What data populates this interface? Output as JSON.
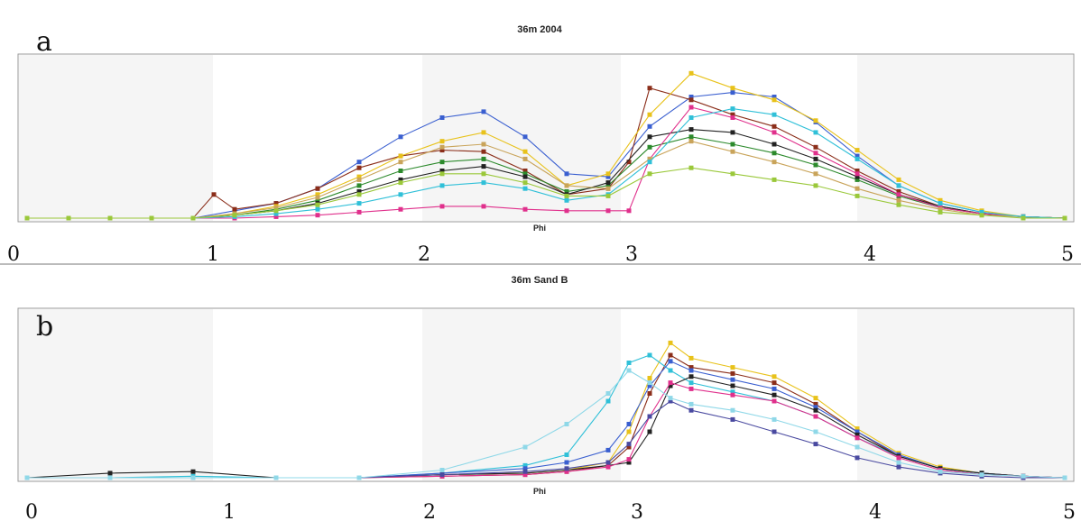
{
  "chart_data": [
    {
      "type": "line",
      "panel_label": "a",
      "title": "36m 2004",
      "xlabel": "Phi",
      "xlim": [
        0,
        5
      ],
      "xticks": [
        "0",
        "1",
        "2",
        "3",
        "4",
        "5"
      ],
      "grid": false,
      "series": [
        {
          "color": "#3a5fd0",
          "x": [
            0.0,
            0.2,
            0.4,
            0.6,
            0.8,
            1.0,
            1.2,
            1.4,
            1.6,
            1.8,
            2.0,
            2.2,
            2.4,
            2.6,
            2.8,
            3.0,
            3.2,
            3.4,
            3.6,
            3.8,
            4.0,
            4.2,
            4.4,
            4.6,
            4.8,
            5.0
          ],
          "y": [
            0,
            0,
            0,
            0,
            0,
            0.05,
            0.1,
            0.2,
            0.38,
            0.55,
            0.68,
            0.72,
            0.55,
            0.3,
            0.28,
            0.62,
            0.82,
            0.85,
            0.82,
            0.65,
            0.42,
            0.22,
            0.1,
            0.04,
            0.01,
            0
          ]
        },
        {
          "color": "#8b2e1a",
          "x": [
            0.0,
            0.2,
            0.4,
            0.6,
            0.8,
            0.9,
            1.0,
            1.2,
            1.4,
            1.6,
            1.8,
            2.0,
            2.2,
            2.4,
            2.6,
            2.8,
            2.9,
            3.0,
            3.2,
            3.4,
            3.6,
            3.8,
            4.0,
            4.2,
            4.4,
            4.6,
            4.8,
            5.0
          ],
          "y": [
            0,
            0,
            0,
            0,
            0,
            0.16,
            0.06,
            0.1,
            0.2,
            0.34,
            0.42,
            0.46,
            0.45,
            0.32,
            0.16,
            0.2,
            0.38,
            0.88,
            0.8,
            0.7,
            0.62,
            0.48,
            0.32,
            0.18,
            0.08,
            0.03,
            0.01,
            0
          ]
        },
        {
          "color": "#e8c21a",
          "x": [
            0.0,
            0.2,
            0.4,
            0.6,
            0.8,
            1.0,
            1.2,
            1.4,
            1.6,
            1.8,
            2.0,
            2.2,
            2.4,
            2.6,
            2.8,
            3.0,
            3.2,
            3.4,
            3.6,
            3.8,
            4.0,
            4.2,
            4.4,
            4.6,
            4.8,
            5.0
          ],
          "y": [
            0,
            0,
            0,
            0,
            0,
            0.03,
            0.08,
            0.16,
            0.28,
            0.42,
            0.52,
            0.58,
            0.45,
            0.22,
            0.3,
            0.7,
            0.98,
            0.88,
            0.8,
            0.66,
            0.46,
            0.26,
            0.12,
            0.05,
            0.01,
            0
          ]
        },
        {
          "color": "#2c8a2c",
          "x": [
            0.0,
            0.2,
            0.4,
            0.6,
            0.8,
            1.0,
            1.2,
            1.4,
            1.6,
            1.8,
            2.0,
            2.2,
            2.4,
            2.6,
            2.8,
            3.0,
            3.2,
            3.4,
            3.6,
            3.8,
            4.0,
            4.2,
            4.4,
            4.6,
            4.8,
            5.0
          ],
          "y": [
            0,
            0,
            0,
            0,
            0,
            0.02,
            0.06,
            0.12,
            0.22,
            0.32,
            0.38,
            0.4,
            0.3,
            0.18,
            0.22,
            0.48,
            0.55,
            0.5,
            0.44,
            0.36,
            0.26,
            0.15,
            0.07,
            0.03,
            0.01,
            0
          ]
        },
        {
          "color": "#222222",
          "x": [
            0.0,
            0.2,
            0.4,
            0.6,
            0.8,
            1.0,
            1.2,
            1.4,
            1.6,
            1.8,
            2.0,
            2.2,
            2.4,
            2.6,
            2.8,
            3.0,
            3.2,
            3.4,
            3.6,
            3.8,
            4.0,
            4.2,
            4.4,
            4.6,
            4.8,
            5.0
          ],
          "y": [
            0,
            0,
            0,
            0,
            0,
            0.02,
            0.05,
            0.1,
            0.18,
            0.26,
            0.32,
            0.35,
            0.28,
            0.16,
            0.24,
            0.55,
            0.6,
            0.58,
            0.5,
            0.4,
            0.28,
            0.16,
            0.08,
            0.03,
            0.01,
            0
          ]
        },
        {
          "color": "#e0308c",
          "x": [
            0.0,
            0.2,
            0.4,
            0.6,
            0.8,
            1.0,
            1.2,
            1.4,
            1.6,
            1.8,
            2.0,
            2.2,
            2.4,
            2.6,
            2.8,
            2.9,
            3.0,
            3.2,
            3.4,
            3.6,
            3.8,
            4.0,
            4.2,
            4.4,
            4.6,
            4.8,
            5.0
          ],
          "y": [
            0,
            0,
            0,
            0,
            0,
            0,
            0.01,
            0.02,
            0.04,
            0.06,
            0.08,
            0.08,
            0.06,
            0.05,
            0.05,
            0.05,
            0.4,
            0.75,
            0.68,
            0.58,
            0.44,
            0.3,
            0.16,
            0.07,
            0.03,
            0.01,
            0
          ]
        },
        {
          "color": "#c9a45a",
          "x": [
            0.0,
            0.2,
            0.4,
            0.6,
            0.8,
            1.0,
            1.2,
            1.4,
            1.6,
            1.8,
            2.0,
            2.2,
            2.4,
            2.6,
            2.8,
            3.0,
            3.2,
            3.4,
            3.6,
            3.8,
            4.0,
            4.2,
            4.4,
            4.6,
            4.8,
            5.0
          ],
          "y": [
            0,
            0,
            0,
            0,
            0,
            0.03,
            0.07,
            0.14,
            0.26,
            0.38,
            0.48,
            0.5,
            0.4,
            0.22,
            0.2,
            0.4,
            0.52,
            0.45,
            0.38,
            0.3,
            0.2,
            0.12,
            0.06,
            0.02,
            0.01,
            0
          ]
        },
        {
          "color": "#30c0d8",
          "x": [
            0.0,
            0.2,
            0.4,
            0.6,
            0.8,
            1.0,
            1.2,
            1.4,
            1.6,
            1.8,
            2.0,
            2.2,
            2.4,
            2.6,
            2.8,
            3.0,
            3.2,
            3.4,
            3.6,
            3.8,
            4.0,
            4.2,
            4.4,
            4.6,
            4.8,
            5.0
          ],
          "y": [
            0,
            0,
            0,
            0,
            0,
            0.01,
            0.03,
            0.06,
            0.1,
            0.16,
            0.22,
            0.24,
            0.2,
            0.12,
            0.16,
            0.38,
            0.68,
            0.74,
            0.7,
            0.58,
            0.4,
            0.22,
            0.1,
            0.04,
            0.01,
            0
          ]
        },
        {
          "color": "#9ac83a",
          "x": [
            0.0,
            0.2,
            0.4,
            0.6,
            0.8,
            1.0,
            1.2,
            1.4,
            1.6,
            1.8,
            2.0,
            2.2,
            2.4,
            2.6,
            2.8,
            3.0,
            3.2,
            3.4,
            3.6,
            3.8,
            4.0,
            4.2,
            4.4,
            4.6,
            4.8,
            5.0
          ],
          "y": [
            0,
            0,
            0,
            0,
            0,
            0.02,
            0.05,
            0.09,
            0.16,
            0.24,
            0.3,
            0.3,
            0.24,
            0.15,
            0.15,
            0.3,
            0.34,
            0.3,
            0.26,
            0.22,
            0.15,
            0.09,
            0.04,
            0.02,
            0,
            0
          ]
        }
      ]
    },
    {
      "type": "line",
      "panel_label": "b",
      "title": "36m Sand B",
      "xlabel": "Phi",
      "xlim": [
        0,
        5
      ],
      "xticks": [
        "0",
        "1",
        "2",
        "3",
        "4",
        "5"
      ],
      "grid": false,
      "series": [
        {
          "color": "#8b2e1a",
          "x": [
            0.0,
            0.4,
            0.8,
            1.2,
            1.6,
            2.0,
            2.4,
            2.6,
            2.8,
            2.9,
            3.0,
            3.1,
            3.2,
            3.4,
            3.6,
            3.8,
            4.0,
            4.2,
            4.4,
            4.6,
            4.8,
            5.0
          ],
          "y": [
            0,
            0,
            0,
            0,
            0,
            0.01,
            0.02,
            0.04,
            0.08,
            0.2,
            0.55,
            0.8,
            0.72,
            0.68,
            0.62,
            0.48,
            0.3,
            0.14,
            0.06,
            0.03,
            0.01,
            0
          ]
        },
        {
          "color": "#e8c21a",
          "x": [
            0.0,
            0.4,
            0.8,
            1.2,
            1.6,
            2.0,
            2.4,
            2.6,
            2.8,
            2.9,
            3.0,
            3.1,
            3.2,
            3.4,
            3.6,
            3.8,
            4.0,
            4.2,
            4.4,
            4.6,
            4.8,
            5.0
          ],
          "y": [
            0,
            0,
            0,
            0,
            0,
            0.02,
            0.03,
            0.05,
            0.1,
            0.3,
            0.65,
            0.88,
            0.78,
            0.72,
            0.66,
            0.52,
            0.32,
            0.16,
            0.07,
            0.03,
            0.01,
            0
          ]
        },
        {
          "color": "#30c0d8",
          "x": [
            0.0,
            0.4,
            0.8,
            1.2,
            1.6,
            2.0,
            2.4,
            2.6,
            2.8,
            2.9,
            3.0,
            3.1,
            3.2,
            3.4,
            3.6,
            3.8,
            4.0,
            4.2,
            4.4,
            4.6,
            4.8,
            5.0
          ],
          "y": [
            0,
            0,
            0.01,
            0,
            0,
            0.03,
            0.08,
            0.15,
            0.5,
            0.75,
            0.8,
            0.7,
            0.62,
            0.56,
            0.5,
            0.4,
            0.26,
            0.14,
            0.06,
            0.03,
            0.01,
            0
          ]
        },
        {
          "color": "#3a5fd0",
          "x": [
            0.0,
            0.4,
            0.8,
            1.2,
            1.6,
            2.0,
            2.4,
            2.6,
            2.8,
            2.9,
            3.0,
            3.1,
            3.2,
            3.4,
            3.6,
            3.8,
            4.0,
            4.2,
            4.4,
            4.6,
            4.8,
            5.0
          ],
          "y": [
            0,
            0,
            0,
            0,
            0,
            0.03,
            0.06,
            0.1,
            0.18,
            0.35,
            0.6,
            0.76,
            0.7,
            0.64,
            0.58,
            0.46,
            0.3,
            0.15,
            0.06,
            0.03,
            0.01,
            0
          ]
        },
        {
          "color": "#222222",
          "x": [
            0.0,
            0.4,
            0.8,
            1.2,
            1.6,
            2.0,
            2.4,
            2.6,
            2.8,
            2.9,
            3.0,
            3.1,
            3.2,
            3.4,
            3.6,
            3.8,
            4.0,
            4.2,
            4.4,
            4.6,
            4.8,
            5.0
          ],
          "y": [
            0,
            0.03,
            0.04,
            0,
            0,
            0.02,
            0.03,
            0.05,
            0.08,
            0.1,
            0.3,
            0.6,
            0.66,
            0.6,
            0.54,
            0.44,
            0.28,
            0.14,
            0.06,
            0.03,
            0.01,
            0
          ]
        },
        {
          "color": "#e0308c",
          "x": [
            0.0,
            0.4,
            0.8,
            1.2,
            1.6,
            2.0,
            2.4,
            2.6,
            2.8,
            2.9,
            3.0,
            3.1,
            3.2,
            3.4,
            3.6,
            3.8,
            4.0,
            4.2,
            4.4,
            4.6,
            4.8,
            5.0
          ],
          "y": [
            0,
            0,
            0,
            0,
            0,
            0.01,
            0.02,
            0.04,
            0.07,
            0.12,
            0.4,
            0.62,
            0.58,
            0.54,
            0.5,
            0.4,
            0.26,
            0.13,
            0.05,
            0.02,
            0.01,
            0
          ]
        },
        {
          "color": "#4a4aa0",
          "x": [
            0.0,
            0.4,
            0.8,
            1.2,
            1.6,
            2.0,
            2.4,
            2.6,
            2.8,
            2.9,
            3.0,
            3.1,
            3.2,
            3.4,
            3.6,
            3.8,
            4.0,
            4.2,
            4.4,
            4.6,
            4.8,
            5.0
          ],
          "y": [
            0,
            0,
            0,
            0,
            0,
            0.02,
            0.04,
            0.06,
            0.1,
            0.22,
            0.4,
            0.5,
            0.44,
            0.38,
            0.3,
            0.22,
            0.13,
            0.07,
            0.03,
            0.01,
            0,
            0
          ]
        },
        {
          "color": "#8fd8e8",
          "x": [
            0.0,
            0.4,
            0.8,
            1.2,
            1.6,
            2.0,
            2.4,
            2.6,
            2.8,
            2.9,
            3.0,
            3.1,
            3.2,
            3.4,
            3.6,
            3.8,
            4.0,
            4.2,
            4.4,
            4.6,
            4.8,
            5.0
          ],
          "y": [
            0,
            0,
            0,
            0,
            0,
            0.05,
            0.2,
            0.35,
            0.55,
            0.7,
            0.62,
            0.52,
            0.48,
            0.44,
            0.38,
            0.3,
            0.2,
            0.1,
            0.04,
            0.02,
            0.01,
            0
          ]
        }
      ]
    }
  ]
}
